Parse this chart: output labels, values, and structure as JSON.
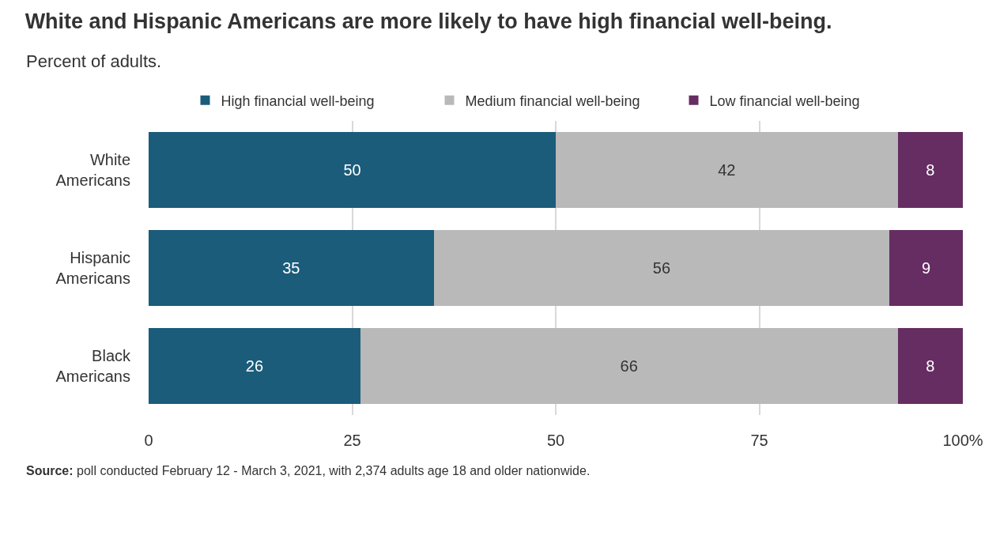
{
  "chart_data": {
    "type": "bar",
    "orientation": "horizontal",
    "stacked": true,
    "title": "White and Hispanic Americans are more likely to have high financial well-being.",
    "subtitle": "Percent of adults.",
    "categories": [
      "White Americans",
      "Hispanic Americans",
      "Black Americans"
    ],
    "series": [
      {
        "name": "High financial well-being",
        "color": "#1a5c7a",
        "values": [
          50,
          35,
          26
        ]
      },
      {
        "name": "Medium financial well-being",
        "color": "#b9b9b9",
        "values": [
          42,
          56,
          66
        ]
      },
      {
        "name": "Low financial well-being",
        "color": "#652d62",
        "values": [
          8,
          9,
          8
        ]
      }
    ],
    "xlim": [
      0,
      100
    ],
    "xticks": [
      0,
      25,
      50,
      75,
      {
        "value": 100,
        "label": "100%"
      }
    ],
    "grid": "x",
    "legend": "top",
    "data_labels": true,
    "annotations": [
      "Source: poll conducted February 12 - March 3, 2021, with 2,374 adults age 18 and older nationwide."
    ]
  }
}
